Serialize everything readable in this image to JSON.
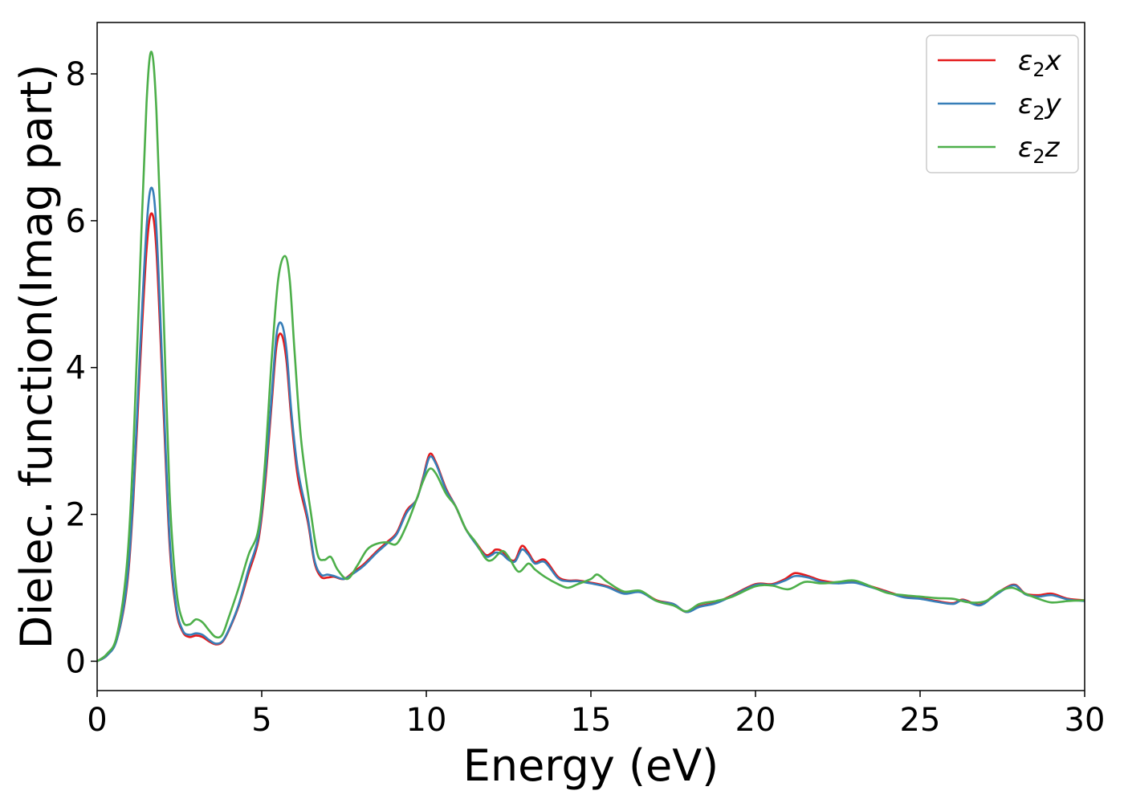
{
  "chart_data": {
    "type": "line",
    "title": "",
    "xlabel": "Energy (eV)",
    "ylabel": "Dielec. function(Imag part)",
    "xlim": [
      0,
      30
    ],
    "ylim": [
      -0.4,
      8.7
    ],
    "xticks": [
      0,
      5,
      10,
      15,
      20,
      25,
      30
    ],
    "yticks": [
      0,
      2,
      4,
      6,
      8
    ],
    "grid": false,
    "legend_position": "top-right",
    "series": [
      {
        "name": "ε2x",
        "label_base": "ε",
        "label_sub": "2",
        "label_tail": "x",
        "color": "#e41a1c",
        "points": [
          [
            0,
            0.0
          ],
          [
            0.3,
            0.08
          ],
          [
            0.6,
            0.3
          ],
          [
            0.9,
            1.0
          ],
          [
            1.1,
            2.2
          ],
          [
            1.3,
            4.0
          ],
          [
            1.5,
            5.6
          ],
          [
            1.65,
            6.1
          ],
          [
            1.8,
            5.6
          ],
          [
            2.0,
            3.6
          ],
          [
            2.2,
            1.6
          ],
          [
            2.4,
            0.7
          ],
          [
            2.6,
            0.4
          ],
          [
            2.8,
            0.33
          ],
          [
            3.0,
            0.35
          ],
          [
            3.2,
            0.33
          ],
          [
            3.4,
            0.27
          ],
          [
            3.6,
            0.23
          ],
          [
            3.8,
            0.26
          ],
          [
            4.0,
            0.42
          ],
          [
            4.3,
            0.75
          ],
          [
            4.6,
            1.2
          ],
          [
            4.9,
            1.65
          ],
          [
            5.1,
            2.4
          ],
          [
            5.3,
            3.5
          ],
          [
            5.45,
            4.3
          ],
          [
            5.6,
            4.45
          ],
          [
            5.75,
            4.1
          ],
          [
            5.9,
            3.3
          ],
          [
            6.1,
            2.5
          ],
          [
            6.4,
            1.9
          ],
          [
            6.6,
            1.35
          ],
          [
            6.8,
            1.15
          ],
          [
            7.0,
            1.14
          ],
          [
            7.2,
            1.15
          ],
          [
            7.5,
            1.12
          ],
          [
            7.8,
            1.22
          ],
          [
            8.1,
            1.32
          ],
          [
            8.5,
            1.5
          ],
          [
            8.8,
            1.62
          ],
          [
            9.1,
            1.75
          ],
          [
            9.4,
            2.05
          ],
          [
            9.7,
            2.2
          ],
          [
            9.9,
            2.5
          ],
          [
            10.1,
            2.82
          ],
          [
            10.3,
            2.7
          ],
          [
            10.6,
            2.35
          ],
          [
            10.9,
            2.1
          ],
          [
            11.2,
            1.8
          ],
          [
            11.5,
            1.62
          ],
          [
            11.8,
            1.45
          ],
          [
            12.0,
            1.48
          ],
          [
            12.1,
            1.52
          ],
          [
            12.3,
            1.5
          ],
          [
            12.5,
            1.4
          ],
          [
            12.7,
            1.38
          ],
          [
            12.9,
            1.57
          ],
          [
            13.1,
            1.48
          ],
          [
            13.3,
            1.35
          ],
          [
            13.6,
            1.38
          ],
          [
            14.0,
            1.15
          ],
          [
            14.3,
            1.1
          ],
          [
            14.6,
            1.1
          ],
          [
            15.0,
            1.07
          ],
          [
            15.5,
            1.02
          ],
          [
            16.0,
            0.93
          ],
          [
            16.5,
            0.95
          ],
          [
            17.0,
            0.83
          ],
          [
            17.5,
            0.78
          ],
          [
            17.9,
            0.67
          ],
          [
            18.3,
            0.75
          ],
          [
            18.8,
            0.8
          ],
          [
            19.3,
            0.9
          ],
          [
            20.0,
            1.05
          ],
          [
            20.5,
            1.05
          ],
          [
            20.9,
            1.12
          ],
          [
            21.2,
            1.2
          ],
          [
            21.6,
            1.16
          ],
          [
            22.0,
            1.1
          ],
          [
            22.5,
            1.07
          ],
          [
            23.0,
            1.08
          ],
          [
            23.5,
            1.02
          ],
          [
            24.0,
            0.95
          ],
          [
            24.5,
            0.88
          ],
          [
            25.0,
            0.86
          ],
          [
            25.5,
            0.82
          ],
          [
            26.0,
            0.79
          ],
          [
            26.3,
            0.84
          ],
          [
            26.8,
            0.77
          ],
          [
            27.2,
            0.88
          ],
          [
            27.6,
            1.0
          ],
          [
            27.9,
            1.04
          ],
          [
            28.2,
            0.92
          ],
          [
            28.6,
            0.9
          ],
          [
            29.0,
            0.92
          ],
          [
            29.5,
            0.85
          ],
          [
            30.0,
            0.83
          ]
        ]
      },
      {
        "name": "ε2y",
        "label_base": "ε",
        "label_sub": "2",
        "label_tail": "y",
        "color": "#377eb8",
        "points": [
          [
            0,
            0.0
          ],
          [
            0.3,
            0.08
          ],
          [
            0.6,
            0.3
          ],
          [
            0.9,
            1.05
          ],
          [
            1.1,
            2.3
          ],
          [
            1.3,
            4.2
          ],
          [
            1.5,
            5.9
          ],
          [
            1.65,
            6.45
          ],
          [
            1.8,
            5.9
          ],
          [
            2.0,
            3.8
          ],
          [
            2.2,
            1.7
          ],
          [
            2.4,
            0.75
          ],
          [
            2.6,
            0.42
          ],
          [
            2.8,
            0.36
          ],
          [
            3.0,
            0.38
          ],
          [
            3.2,
            0.36
          ],
          [
            3.4,
            0.29
          ],
          [
            3.6,
            0.24
          ],
          [
            3.8,
            0.27
          ],
          [
            4.0,
            0.43
          ],
          [
            4.3,
            0.77
          ],
          [
            4.6,
            1.25
          ],
          [
            4.9,
            1.7
          ],
          [
            5.1,
            2.5
          ],
          [
            5.3,
            3.6
          ],
          [
            5.45,
            4.45
          ],
          [
            5.6,
            4.6
          ],
          [
            5.75,
            4.25
          ],
          [
            5.9,
            3.4
          ],
          [
            6.1,
            2.6
          ],
          [
            6.4,
            1.95
          ],
          [
            6.6,
            1.38
          ],
          [
            6.8,
            1.18
          ],
          [
            7.0,
            1.18
          ],
          [
            7.2,
            1.16
          ],
          [
            7.5,
            1.12
          ],
          [
            7.8,
            1.2
          ],
          [
            8.1,
            1.3
          ],
          [
            8.5,
            1.48
          ],
          [
            8.8,
            1.6
          ],
          [
            9.1,
            1.73
          ],
          [
            9.4,
            2.02
          ],
          [
            9.7,
            2.2
          ],
          [
            9.9,
            2.48
          ],
          [
            10.1,
            2.78
          ],
          [
            10.3,
            2.68
          ],
          [
            10.6,
            2.33
          ],
          [
            10.9,
            2.1
          ],
          [
            11.2,
            1.8
          ],
          [
            11.5,
            1.6
          ],
          [
            11.8,
            1.43
          ],
          [
            12.0,
            1.45
          ],
          [
            12.1,
            1.48
          ],
          [
            12.3,
            1.46
          ],
          [
            12.5,
            1.38
          ],
          [
            12.7,
            1.36
          ],
          [
            12.9,
            1.52
          ],
          [
            13.1,
            1.45
          ],
          [
            13.3,
            1.33
          ],
          [
            13.6,
            1.35
          ],
          [
            14.0,
            1.13
          ],
          [
            14.3,
            1.09
          ],
          [
            14.6,
            1.09
          ],
          [
            15.0,
            1.06
          ],
          [
            15.5,
            1.01
          ],
          [
            16.0,
            0.92
          ],
          [
            16.5,
            0.94
          ],
          [
            17.0,
            0.82
          ],
          [
            17.5,
            0.78
          ],
          [
            17.9,
            0.67
          ],
          [
            18.3,
            0.74
          ],
          [
            18.8,
            0.79
          ],
          [
            19.3,
            0.89
          ],
          [
            20.0,
            1.04
          ],
          [
            20.5,
            1.04
          ],
          [
            20.9,
            1.1
          ],
          [
            21.2,
            1.16
          ],
          [
            21.6,
            1.14
          ],
          [
            22.0,
            1.08
          ],
          [
            22.5,
            1.06
          ],
          [
            23.0,
            1.07
          ],
          [
            23.5,
            1.01
          ],
          [
            24.0,
            0.94
          ],
          [
            24.5,
            0.87
          ],
          [
            25.0,
            0.85
          ],
          [
            25.5,
            0.81
          ],
          [
            26.0,
            0.78
          ],
          [
            26.3,
            0.83
          ],
          [
            26.8,
            0.76
          ],
          [
            27.2,
            0.87
          ],
          [
            27.6,
            0.99
          ],
          [
            27.9,
            1.03
          ],
          [
            28.2,
            0.91
          ],
          [
            28.6,
            0.88
          ],
          [
            29.0,
            0.9
          ],
          [
            29.5,
            0.84
          ],
          [
            30.0,
            0.82
          ]
        ]
      },
      {
        "name": "ε2z",
        "label_base": "ε",
        "label_sub": "2",
        "label_tail": "z",
        "color": "#4daf4a",
        "points": [
          [
            0,
            0.0
          ],
          [
            0.3,
            0.1
          ],
          [
            0.6,
            0.35
          ],
          [
            0.9,
            1.3
          ],
          [
            1.1,
            2.9
          ],
          [
            1.3,
            5.3
          ],
          [
            1.5,
            7.6
          ],
          [
            1.65,
            8.3
          ],
          [
            1.8,
            7.5
          ],
          [
            2.0,
            5.0
          ],
          [
            2.2,
            2.3
          ],
          [
            2.4,
            1.0
          ],
          [
            2.6,
            0.55
          ],
          [
            2.8,
            0.5
          ],
          [
            3.0,
            0.57
          ],
          [
            3.2,
            0.53
          ],
          [
            3.4,
            0.42
          ],
          [
            3.6,
            0.33
          ],
          [
            3.8,
            0.36
          ],
          [
            4.0,
            0.6
          ],
          [
            4.3,
            1.0
          ],
          [
            4.6,
            1.45
          ],
          [
            4.9,
            1.8
          ],
          [
            5.1,
            2.7
          ],
          [
            5.3,
            4.1
          ],
          [
            5.5,
            5.2
          ],
          [
            5.7,
            5.52
          ],
          [
            5.85,
            5.2
          ],
          [
            6.0,
            4.2
          ],
          [
            6.2,
            3.0
          ],
          [
            6.5,
            2.0
          ],
          [
            6.7,
            1.45
          ],
          [
            6.9,
            1.38
          ],
          [
            7.1,
            1.42
          ],
          [
            7.3,
            1.25
          ],
          [
            7.6,
            1.12
          ],
          [
            7.9,
            1.3
          ],
          [
            8.2,
            1.52
          ],
          [
            8.5,
            1.6
          ],
          [
            8.8,
            1.62
          ],
          [
            9.1,
            1.6
          ],
          [
            9.4,
            1.85
          ],
          [
            9.7,
            2.2
          ],
          [
            9.9,
            2.45
          ],
          [
            10.1,
            2.62
          ],
          [
            10.3,
            2.55
          ],
          [
            10.6,
            2.28
          ],
          [
            10.9,
            2.1
          ],
          [
            11.2,
            1.8
          ],
          [
            11.5,
            1.62
          ],
          [
            11.8,
            1.4
          ],
          [
            12.0,
            1.38
          ],
          [
            12.3,
            1.5
          ],
          [
            12.5,
            1.42
          ],
          [
            12.8,
            1.22
          ],
          [
            13.1,
            1.33
          ],
          [
            13.3,
            1.25
          ],
          [
            13.6,
            1.15
          ],
          [
            14.0,
            1.05
          ],
          [
            14.3,
            1.0
          ],
          [
            14.6,
            1.05
          ],
          [
            15.0,
            1.12
          ],
          [
            15.2,
            1.18
          ],
          [
            15.5,
            1.08
          ],
          [
            16.0,
            0.95
          ],
          [
            16.5,
            0.96
          ],
          [
            17.0,
            0.82
          ],
          [
            17.5,
            0.76
          ],
          [
            17.9,
            0.68
          ],
          [
            18.3,
            0.78
          ],
          [
            18.8,
            0.82
          ],
          [
            19.3,
            0.88
          ],
          [
            20.0,
            1.02
          ],
          [
            20.5,
            1.03
          ],
          [
            21.0,
            0.98
          ],
          [
            21.5,
            1.08
          ],
          [
            22.0,
            1.06
          ],
          [
            22.5,
            1.08
          ],
          [
            23.0,
            1.1
          ],
          [
            23.5,
            1.02
          ],
          [
            24.0,
            0.93
          ],
          [
            24.5,
            0.9
          ],
          [
            25.0,
            0.88
          ],
          [
            25.5,
            0.86
          ],
          [
            26.0,
            0.85
          ],
          [
            26.5,
            0.8
          ],
          [
            27.0,
            0.82
          ],
          [
            27.4,
            0.95
          ],
          [
            27.8,
            1.0
          ],
          [
            28.2,
            0.92
          ],
          [
            28.6,
            0.85
          ],
          [
            29.0,
            0.8
          ],
          [
            29.5,
            0.82
          ],
          [
            30.0,
            0.83
          ]
        ]
      }
    ]
  }
}
